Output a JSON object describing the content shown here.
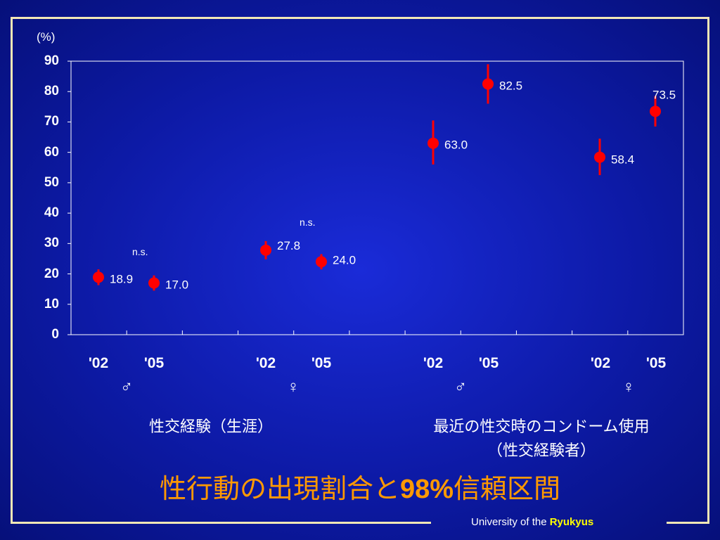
{
  "chart_data": {
    "type": "scatter",
    "unit_label": "(%)",
    "ylim": [
      0,
      90
    ],
    "yticks": [
      0,
      10,
      20,
      30,
      40,
      50,
      60,
      70,
      80,
      90
    ],
    "points": [
      {
        "x": "'02",
        "y": 18.9,
        "label": "18.9",
        "ci_low": 16.3,
        "ci_high": 21.5
      },
      {
        "x": "'05",
        "y": 17.0,
        "label": "17.0",
        "ci_low": 14.5,
        "ci_high": 19.5
      },
      {
        "x": "'02",
        "y": 27.8,
        "label": "27.8",
        "ci_low": 24.8,
        "ci_high": 30.8
      },
      {
        "x": "'05",
        "y": 24.0,
        "label": "24.0",
        "ci_low": 21.5,
        "ci_high": 26.5
      },
      {
        "x": "'02",
        "y": 63.0,
        "label": "63.0",
        "ci_low": 56.0,
        "ci_high": 70.5
      },
      {
        "x": "'05",
        "y": 82.5,
        "label": "82.5",
        "ci_low": 76.0,
        "ci_high": 89.0
      },
      {
        "x": "'02",
        "y": 58.4,
        "label": "58.4",
        "ci_low": 52.5,
        "ci_high": 64.5
      },
      {
        "x": "'05",
        "y": 73.5,
        "label": "73.5",
        "ci_low": 68.5,
        "ci_high": 78.5
      }
    ],
    "annotations": [
      "n.s.",
      "n.s."
    ],
    "marker_color": "#ff0000",
    "grid": false
  },
  "x_labels": [
    "'02",
    "'05",
    "'02",
    "'05",
    "'02",
    "'05",
    "'02",
    "'05"
  ],
  "sex_labels": [
    "♂",
    "♀",
    "♂",
    "♀"
  ],
  "group_labels": {
    "lifetime": "性交経験（生涯）",
    "condom_line1": "最近の性交時のコンドーム使用",
    "condom_line2": "（性交経験者）"
  },
  "title": {
    "part1": "性行動の出現割合と",
    "part2": "98%",
    "part3": "信頼区間"
  },
  "footer": {
    "prefix": "University of the ",
    "brand": "Ryukyus"
  },
  "colors": {
    "frame": "#f2e7b6",
    "title": "#ff9900",
    "brand": "#ffff00",
    "marker": "#ff0000"
  }
}
